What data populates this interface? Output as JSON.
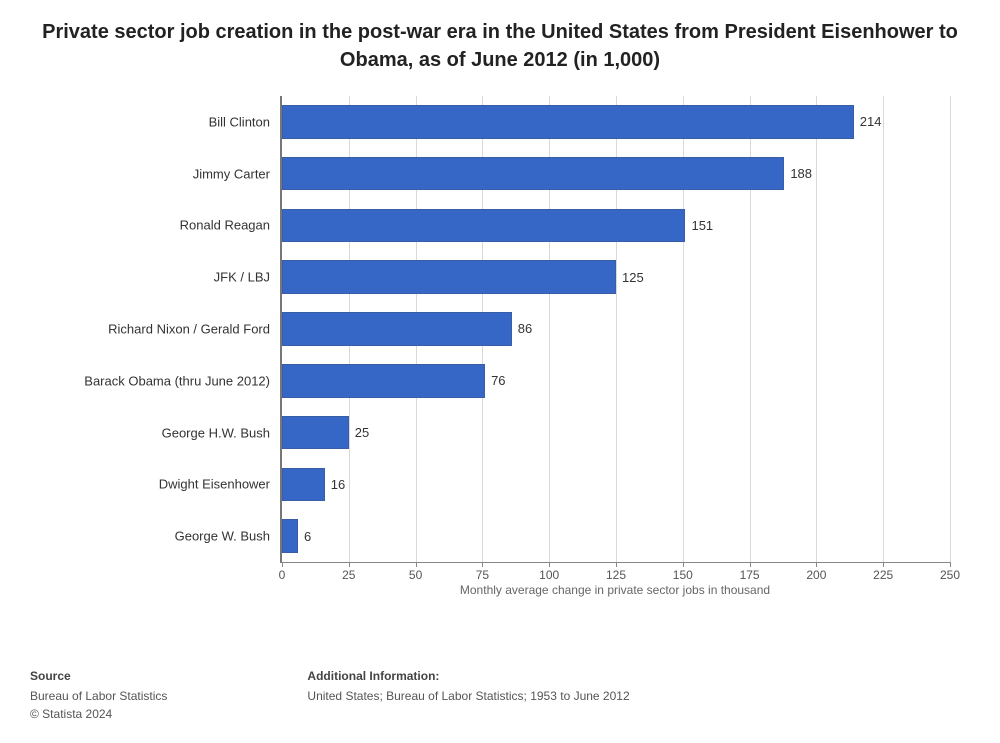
{
  "title": "Private sector job creation in the post-war era in the United States from President Eisenhower to Obama, as of June 2012 (in 1,000)",
  "title_fontsize": 20,
  "chart": {
    "type": "bar-horizontal",
    "categories": [
      "Bill Clinton",
      "Jimmy Carter",
      "Ronald Reagan",
      "JFK / LBJ",
      "Richard Nixon / Gerald Ford",
      "Barack Obama (thru June 2012)",
      "George H.W. Bush",
      "Dwight Eisenhower",
      "George W. Bush"
    ],
    "values": [
      214,
      188,
      151,
      125,
      86,
      76,
      25,
      16,
      6
    ],
    "bar_color": "#3667c7",
    "bar_border_color": "#3a5da7",
    "background_color": "#ffffff",
    "grid_color": "#d9d9d9",
    "axis_color": "#888888",
    "xlim": [
      0,
      250
    ],
    "xtick_step": 25,
    "xticks": [
      0,
      25,
      50,
      75,
      100,
      125,
      150,
      175,
      200,
      225,
      250
    ],
    "xlabel": "Monthly average change in private sector jobs in thousand",
    "label_fontsize": 13,
    "tick_fontsize": 12,
    "value_label_fontsize": 13,
    "bar_height_ratio": 0.65
  },
  "footer": {
    "source_heading": "Source",
    "source_line1": "Bureau of Labor Statistics",
    "source_line2": "© Statista 2024",
    "additional_heading": "Additional Information:",
    "additional_line": "United States; Bureau of Labor Statistics; 1953 to June 2012"
  }
}
